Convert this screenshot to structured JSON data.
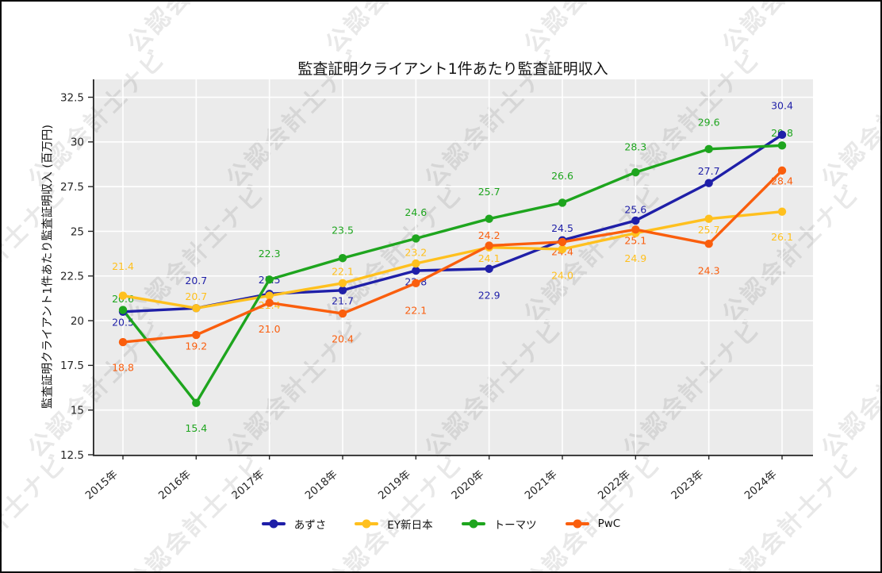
{
  "watermark": {
    "text": "公認会計士ナビ"
  },
  "chart_data": {
    "type": "line",
    "title": "監査証明クライアント1件あたり監査証明収入",
    "xlabel": "",
    "ylabel": "監査証明クライアント1件あたり監査証明収入 (百万円)",
    "categories": [
      "2015年",
      "2016年",
      "2017年",
      "2018年",
      "2019年",
      "2020年",
      "2021年",
      "2022年",
      "2023年",
      "2024年"
    ],
    "yticks": [
      12.5,
      15,
      17.5,
      20,
      22.5,
      25,
      27.5,
      30,
      32.5
    ],
    "ylim": [
      12.5,
      33.5
    ],
    "grid": true,
    "legend_position": "bottom",
    "colors": {
      "plot_bg": "#ebebeb",
      "grid": "#ffffff",
      "axis": "#262626",
      "tick_text": "#262626"
    },
    "series": [
      {
        "name": "あずさ",
        "id": "azusa",
        "color": "#1f1fa8",
        "values": [
          20.5,
          20.7,
          21.5,
          21.7,
          22.8,
          22.9,
          24.5,
          25.6,
          27.7,
          30.4
        ],
        "label_dy": [
          13,
          -35,
          -18,
          13,
          14,
          33,
          -15,
          -14,
          -15,
          -37
        ]
      },
      {
        "name": "EY新日本",
        "id": "ey-shinnihon",
        "color": "#ffc01e",
        "values": [
          21.4,
          20.7,
          21.4,
          22.1,
          23.2,
          24.1,
          24.0,
          24.9,
          25.7,
          26.1
        ],
        "label_dy": [
          -37,
          -15,
          12,
          -15,
          -14,
          14,
          33,
          32,
          14,
          32
        ]
      },
      {
        "name": "トーマツ",
        "id": "tohmatsu",
        "color": "#1ea51e",
        "values": [
          20.6,
          15.4,
          22.3,
          23.5,
          24.6,
          25.7,
          26.6,
          28.3,
          29.6,
          29.8
        ],
        "label_dy": [
          -14,
          32,
          -33,
          -35,
          -33,
          -34,
          -34,
          -32,
          -34,
          -16
        ]
      },
      {
        "name": "PwC",
        "id": "pwc",
        "color": "#fa5e0d",
        "values": [
          18.8,
          19.2,
          21.0,
          20.4,
          22.1,
          24.2,
          24.4,
          25.1,
          24.3,
          28.4
        ],
        "label_dy": [
          32,
          14,
          33,
          32,
          34,
          -13,
          12,
          14,
          34,
          13
        ]
      }
    ]
  }
}
